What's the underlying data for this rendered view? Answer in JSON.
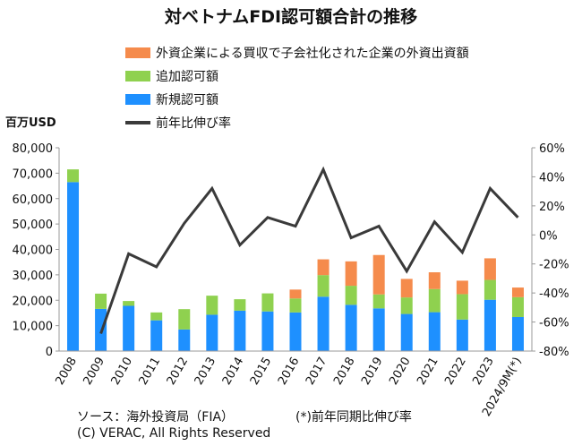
{
  "chart_data": {
    "type": "bar",
    "title": "対ベトナムFDI認可額合計の推移",
    "unit_label": "百万USD",
    "categories": [
      "2008",
      "2009",
      "2010",
      "2011",
      "2012",
      "2013",
      "2014",
      "2015",
      "2016",
      "2017",
      "2018",
      "2019",
      "2020",
      "2021",
      "2022",
      "2023",
      "2024/9M(*)"
    ],
    "series": [
      {
        "name": "外資企業による買収で子会社化された企業の外資出資額",
        "type": "bar",
        "axis": "left",
        "color": "#f58b4c",
        "values": [
          0,
          0,
          0,
          0,
          0,
          0,
          0,
          0,
          3500,
          6200,
          9600,
          15500,
          7300,
          6600,
          5300,
          8500,
          3800
        ]
      },
      {
        "name": "追加認可額",
        "type": "bar",
        "axis": "left",
        "color": "#8fd14f",
        "values": [
          5000,
          6000,
          1900,
          3100,
          8000,
          7500,
          4500,
          7100,
          5500,
          8500,
          7500,
          5500,
          6500,
          9100,
          10000,
          7800,
          7800
        ]
      },
      {
        "name": "新規認可額",
        "type": "bar",
        "axis": "left",
        "color": "#1e90ff",
        "values": [
          66500,
          16600,
          17800,
          12100,
          8500,
          14300,
          15900,
          15600,
          15200,
          21400,
          18200,
          16800,
          14600,
          15300,
          12400,
          20200,
          13400
        ]
      },
      {
        "name": "前年比伸び率",
        "type": "line",
        "axis": "right",
        "color": "#3a3a3a",
        "values": [
          null,
          -68,
          -13,
          -22,
          8,
          32,
          -7,
          12,
          6,
          45,
          -2,
          6,
          -25,
          9,
          -12,
          32,
          12
        ]
      }
    ],
    "y_left": {
      "min": 0,
      "max": 80000,
      "ticks": [
        "0",
        "10,000",
        "20,000",
        "30,000",
        "40,000",
        "50,000",
        "60,000",
        "70,000",
        "80,000"
      ]
    },
    "y_right": {
      "min": -80,
      "max": 60,
      "ticks": [
        "-80%",
        "-60%",
        "-40%",
        "-20%",
        "0%",
        "20%",
        "40%",
        "60%"
      ]
    },
    "grid": false,
    "legend_position": "top"
  },
  "footer": {
    "source": "ソース：海外投資局（FIA）",
    "footnote": "(*)前年同期比伸び率",
    "copyright": "(C) VERAC, All Rights Reserved"
  }
}
